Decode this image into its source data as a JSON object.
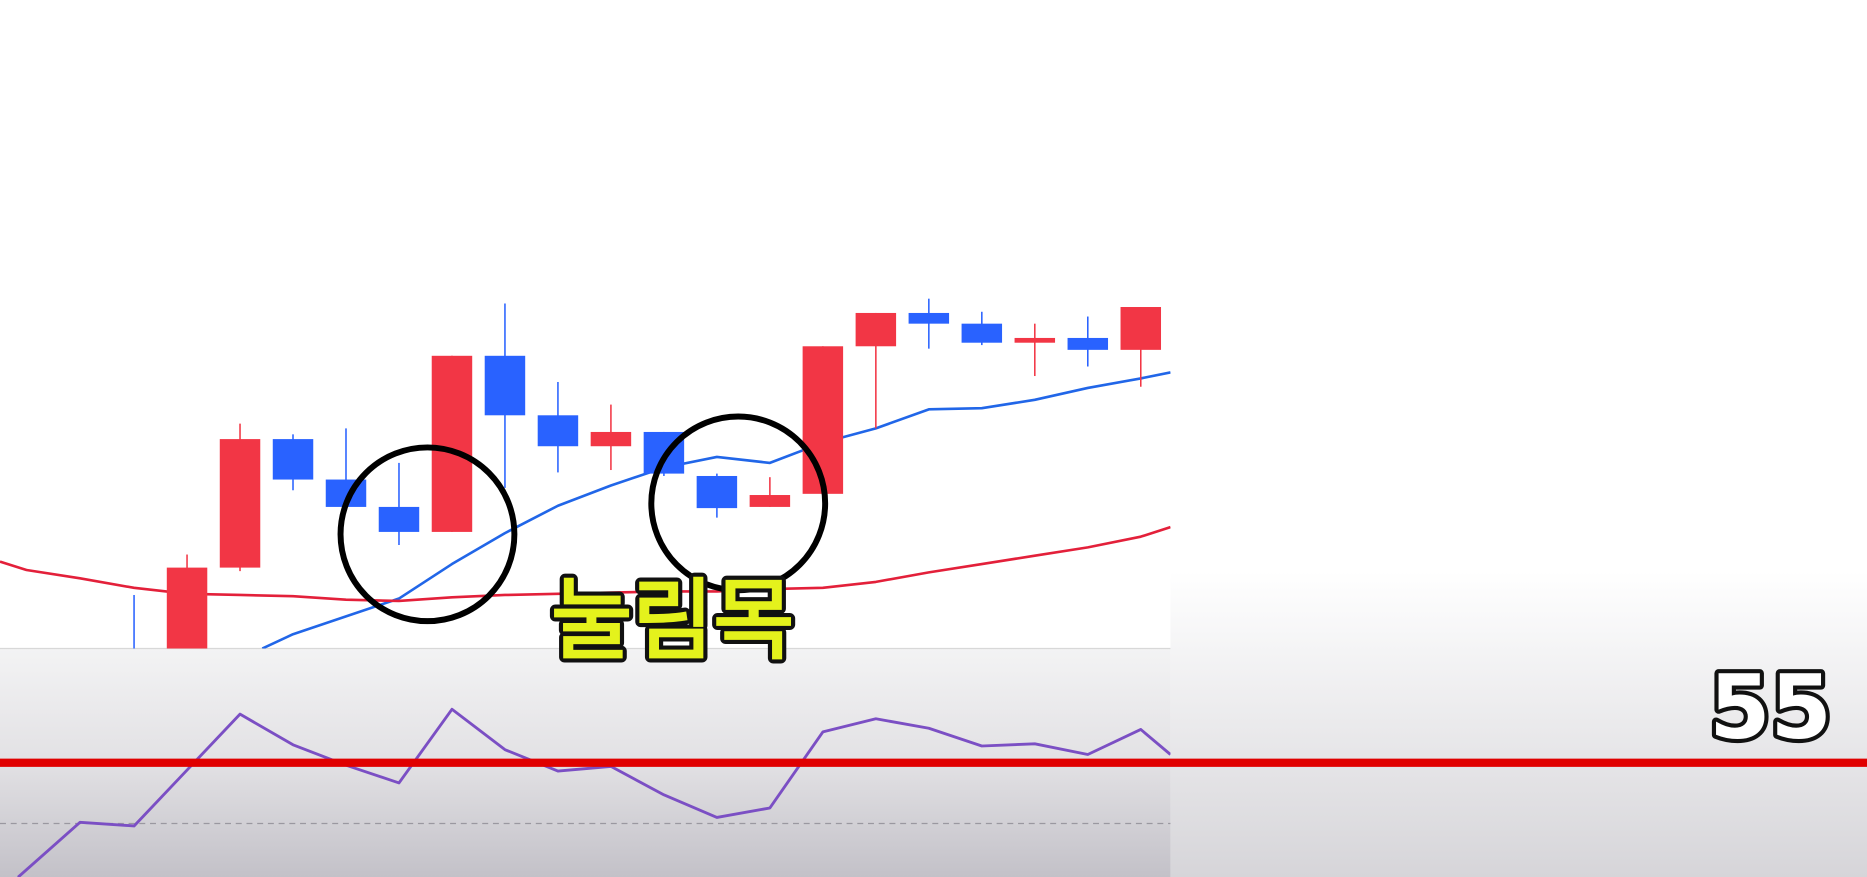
{
  "chart_data": [
    {
      "type": "candlestick",
      "x": [
        -1,
        0,
        1,
        2,
        3,
        4,
        5,
        6,
        7,
        8,
        9,
        10,
        11,
        12,
        13,
        14,
        15,
        16,
        17,
        18
      ],
      "open": [
        -10,
        -10,
        68,
        176,
        142,
        119,
        98,
        246,
        196,
        170,
        182,
        145,
        119,
        130,
        254,
        282,
        273,
        257,
        261,
        251
      ],
      "close": [
        -20,
        68,
        176,
        142,
        119,
        98,
        246,
        196,
        170,
        182,
        147,
        118,
        129,
        254,
        282,
        273,
        257,
        261,
        251,
        287
      ],
      "high": [
        45,
        79,
        189,
        180,
        185,
        156,
        246,
        290,
        224,
        205,
        182,
        147,
        144,
        254,
        282,
        294,
        283,
        273,
        279,
        287
      ],
      "low": [
        -30,
        -20,
        65,
        133,
        119,
        87,
        98,
        135,
        148,
        150,
        145,
        110,
        119,
        130,
        185,
        252,
        255,
        229,
        237,
        220
      ],
      "up_color": "#f23645",
      "down_color": "#2962ff",
      "lines": [
        {
          "color": "#2166e8",
          "x": [
            1.42,
            2,
            3,
            4,
            5,
            6,
            7,
            8,
            9,
            10,
            11,
            12,
            13,
            14,
            15,
            16,
            17,
            18,
            18.56
          ],
          "values": [
            0,
            12,
            27,
            42,
            71,
            97,
            120,
            137,
            152,
            161,
            156,
            173,
            185,
            201,
            202,
            209,
            219,
            227,
            232
          ]
        },
        {
          "color": "#e3203a",
          "x": [
            -3.53,
            -3.03,
            -2.02,
            -1,
            0,
            1,
            2,
            3,
            4,
            5,
            6,
            7,
            8,
            9,
            10,
            11,
            12,
            13,
            14,
            15,
            16,
            17,
            18,
            18.56
          ],
          "values": [
            73,
            66,
            59,
            51,
            46,
            45,
            44,
            41,
            40,
            43,
            45,
            46,
            47,
            48,
            48,
            50,
            51,
            56,
            64,
            71,
            78,
            85,
            94,
            102
          ]
        }
      ],
      "xlim": [
        -3.53,
        18.56
      ],
      "ylim": [
        0,
        545
      ],
      "annotation": "눌림목"
    },
    {
      "type": "line",
      "x": [
        -3.19,
        -2.02,
        -1,
        0,
        1,
        2,
        3,
        4,
        5,
        6,
        7,
        8,
        9,
        10,
        11,
        12,
        13,
        14,
        15,
        16,
        17,
        18,
        18.56
      ],
      "values": [
        7.9,
        30.5,
        29,
        52,
        75,
        62.4,
        54,
        46.7,
        77,
        60.4,
        51.6,
        53.5,
        41.8,
        32.5,
        36.4,
        67.7,
        73.1,
        69.2,
        61.9,
        62.8,
        58.4,
        68.7,
        58.4
      ],
      "color": "#7b4fc4",
      "xlim": [
        -3.53,
        18.56
      ],
      "ylim": [
        8,
        102
      ],
      "hlines": [
        30
      ],
      "level": 55,
      "level_color": "#e00000"
    }
  ]
}
